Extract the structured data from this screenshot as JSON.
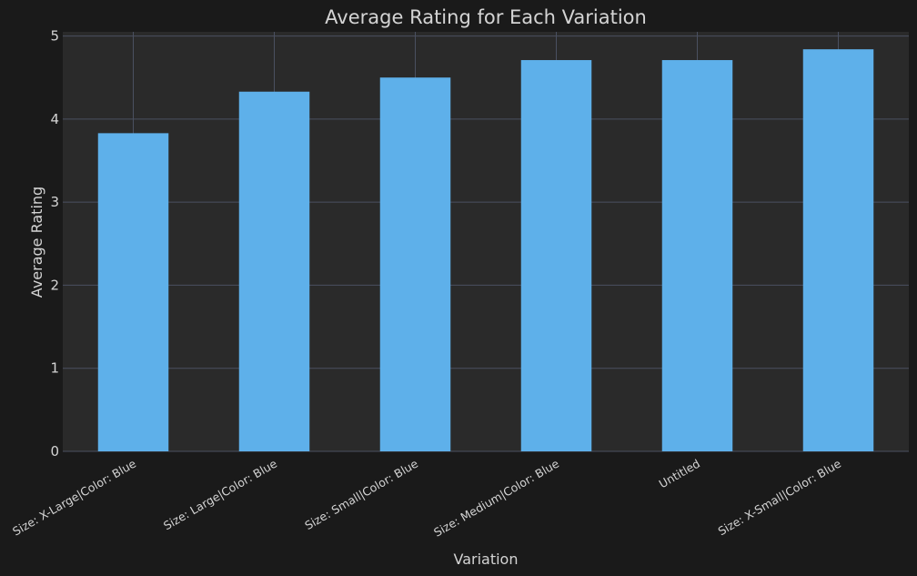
{
  "chart_data": {
    "type": "bar",
    "title": "Average Rating for Each Variation",
    "xlabel": "Variation",
    "ylabel": "Average Rating",
    "categories": [
      "Size: X-Large|Color: Blue",
      "Size: Large|Color: Blue",
      "Size: Small|Color: Blue",
      "Size: Medium|Color: Blue",
      "Untitled",
      "Size: X-Small|Color: Blue"
    ],
    "values": [
      3.83,
      4.33,
      4.5,
      4.71,
      4.71,
      4.84
    ],
    "ylim": [
      0,
      5.05
    ],
    "yticks": [
      0,
      1,
      2,
      3,
      4,
      5
    ],
    "grid": true,
    "colors": {
      "background": "#1a1a1a",
      "plot_background": "#2a2a2a",
      "bar": "#5eb0ea",
      "grid": "#4a5060",
      "text": "#d4d4d4"
    }
  }
}
